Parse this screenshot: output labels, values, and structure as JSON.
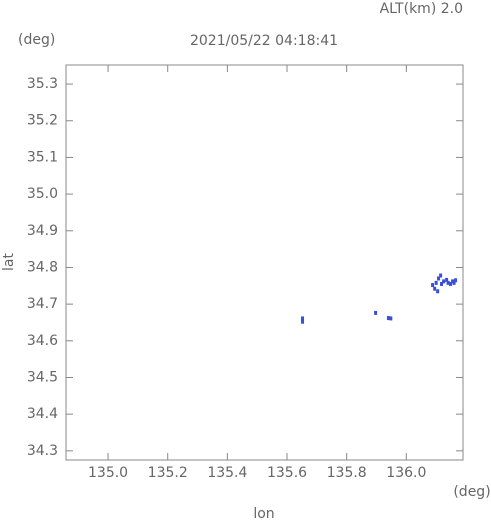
{
  "chart_data": {
    "type": "scatter",
    "title": "2021/05/22 04:18:41",
    "annotation": "ALT(km) 2.0",
    "y_unit": "(deg)",
    "x_unit": "(deg)",
    "xlabel": "lon",
    "ylabel": "lat",
    "xlim": [
      134.859,
      136.19
    ],
    "ylim": [
      34.275,
      35.352
    ],
    "xticks": [
      {
        "value": 135,
        "label": "135.0"
      },
      135.2,
      135.4,
      135.6,
      135.8,
      {
        "value": 136,
        "label": "136.0"
      }
    ],
    "yticks": [
      34.3,
      34.4,
      34.5,
      34.6,
      34.7,
      34.8,
      34.9,
      {
        "value": 35,
        "label": "35.0"
      },
      35.1,
      35.2,
      35.3
    ],
    "color": "#3a4fd8",
    "x": [
      135.652,
      135.652,
      135.897,
      135.94,
      135.948,
      136.088,
      136.095,
      136.1,
      136.108,
      136.115,
      136.118,
      136.125,
      136.135,
      136.14,
      136.148,
      136.155,
      136.16,
      136.165,
      136.105
    ],
    "y": [
      34.652,
      34.661,
      34.676,
      34.662,
      34.661,
      34.752,
      34.742,
      34.758,
      34.77,
      34.778,
      34.755,
      34.762,
      34.766,
      34.758,
      34.755,
      34.762,
      34.758,
      34.765,
      34.735
    ]
  }
}
